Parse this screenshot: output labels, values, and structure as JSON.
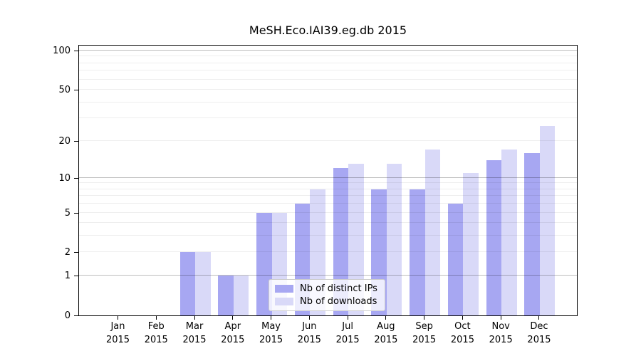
{
  "chart_data": {
    "type": "bar",
    "title": "MeSH.Eco.IAI39.eg.db 2015",
    "year_label": "2015",
    "categories": [
      "Jan",
      "Feb",
      "Mar",
      "Apr",
      "May",
      "Jun",
      "Jul",
      "Aug",
      "Sep",
      "Oct",
      "Nov",
      "Dec"
    ],
    "series": [
      {
        "name": "Nb of distinct IPs",
        "color": "#a7a7f2",
        "values": [
          0,
          0,
          2,
          1,
          5,
          6,
          12,
          8,
          8,
          6,
          14,
          16
        ]
      },
      {
        "name": "Nb of downloads",
        "color": "#d9d9f8",
        "values": [
          0,
          0,
          2,
          1,
          5,
          8,
          13,
          13,
          17,
          11,
          17,
          26
        ]
      }
    ],
    "yscale": "log1p",
    "ylim": [
      0,
      110
    ],
    "yticks_labeled": [
      0,
      1,
      2,
      5,
      10,
      20,
      50,
      100
    ],
    "gridlines_major": [
      1,
      10,
      100
    ],
    "gridlines_minor": [
      2,
      3,
      4,
      5,
      6,
      7,
      8,
      9,
      20,
      30,
      40,
      50,
      60,
      70,
      80,
      90
    ],
    "grid": "horizontal",
    "legend_position": "lower center inside",
    "legend_border_color": "#cccccc"
  }
}
